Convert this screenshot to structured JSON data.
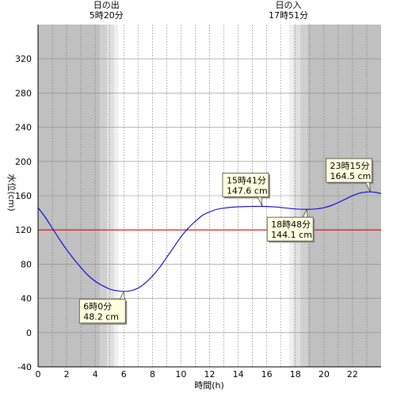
{
  "chart_data": {
    "type": "line",
    "title": "",
    "xlabel": "時間(h)",
    "ylabel": "水位(cm)",
    "xlim": [
      0,
      24
    ],
    "ylim": [
      -40,
      360
    ],
    "x_ticks": [
      0,
      2,
      4,
      6,
      8,
      10,
      12,
      14,
      16,
      18,
      20,
      22
    ],
    "x_tick_labels": [
      "0",
      "2",
      "4",
      "6",
      "8",
      "10",
      "12",
      "14",
      "16",
      "18",
      "20",
      "22"
    ],
    "y_ticks": [
      -40,
      0,
      40,
      80,
      120,
      160,
      200,
      240,
      280,
      320
    ],
    "y_tick_labels": [
      "-40",
      "0",
      "40",
      "80",
      "120",
      "160",
      "200",
      "240",
      "280",
      "320"
    ],
    "grid": true,
    "reference_line": {
      "value": 120,
      "color": "#e00000"
    },
    "sunrise": {
      "label": "日の出",
      "time_label": "5時20分",
      "hour": 5.333
    },
    "sunset": {
      "label": "日の入",
      "time_label": "17時51分",
      "hour": 17.85
    },
    "series": [
      {
        "color": "#0000dd",
        "points": [
          [
            0,
            146
          ],
          [
            0.5,
            135
          ],
          [
            1,
            122
          ],
          [
            1.5,
            109
          ],
          [
            2,
            97
          ],
          [
            2.5,
            86
          ],
          [
            3,
            76
          ],
          [
            3.5,
            67
          ],
          [
            4,
            60
          ],
          [
            4.5,
            55
          ],
          [
            5,
            51
          ],
          [
            5.5,
            49
          ],
          [
            6,
            48.2
          ],
          [
            6.5,
            49
          ],
          [
            7,
            52
          ],
          [
            7.5,
            58
          ],
          [
            8,
            66
          ],
          [
            8.5,
            76
          ],
          [
            9,
            88
          ],
          [
            9.5,
            100
          ],
          [
            10,
            112
          ],
          [
            10.5,
            122
          ],
          [
            11,
            130
          ],
          [
            11.5,
            137
          ],
          [
            12,
            141
          ],
          [
            12.5,
            144
          ],
          [
            13,
            145.5
          ],
          [
            13.5,
            146.5
          ],
          [
            14,
            147
          ],
          [
            14.5,
            147.3
          ],
          [
            15,
            147.5
          ],
          [
            15.68,
            147.6
          ],
          [
            16.5,
            147
          ],
          [
            17,
            146.3
          ],
          [
            17.5,
            145.3
          ],
          [
            18,
            144.5
          ],
          [
            18.8,
            144.1
          ],
          [
            19.5,
            144.6
          ],
          [
            20,
            146
          ],
          [
            20.5,
            148.5
          ],
          [
            21,
            152
          ],
          [
            21.5,
            156
          ],
          [
            22,
            160
          ],
          [
            22.5,
            163
          ],
          [
            23,
            164.3
          ],
          [
            23.25,
            164.5
          ],
          [
            23.6,
            164
          ],
          [
            24,
            162.5
          ]
        ]
      }
    ],
    "annotations": [
      {
        "time": "6時0分",
        "value": "48.2 cm",
        "x": 6.0,
        "y": 48.2,
        "placement": "below"
      },
      {
        "time": "15時41分",
        "value": "147.6 cm",
        "x": 15.683,
        "y": 147.6,
        "placement": "above"
      },
      {
        "time": "18時48分",
        "value": "144.1 cm",
        "x": 18.8,
        "y": 144.1,
        "placement": "below"
      },
      {
        "time": "23時15分",
        "value": "164.5 cm",
        "x": 23.25,
        "y": 164.5,
        "placement": "above"
      }
    ]
  }
}
